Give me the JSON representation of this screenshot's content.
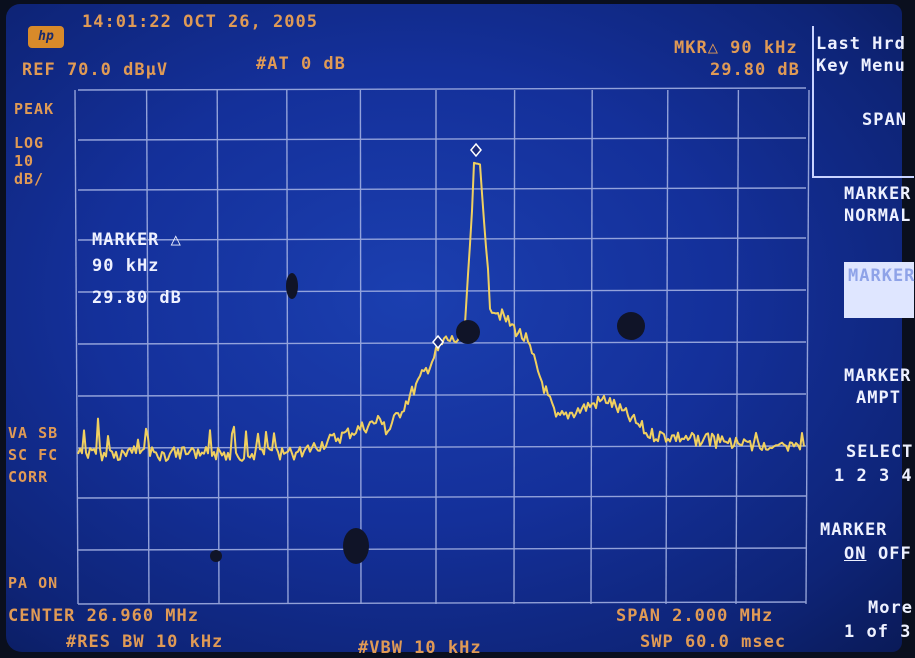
{
  "header": {
    "timestamp": "14:01:22 OCT 26, 2005",
    "ref_level": "REF 70.0 dBµV",
    "attenuation": "#AT 0 dB",
    "marker_delta_freq": "MKR△ 90 kHz",
    "marker_delta_ampl": "29.80 dB"
  },
  "left_annotations": {
    "detector": "PEAK",
    "scale": "LOG",
    "scale_value": "10",
    "scale_unit": "dB/",
    "va_sb": "VA SB",
    "sc_fc": "SC FC",
    "corr": "CORR",
    "pa_on": "PA ON"
  },
  "marker_readout": {
    "title": "MARKER △",
    "freq": "90 kHz",
    "ampl": "29.80 dB"
  },
  "bottom": {
    "center": "CENTER 26.960 MHz",
    "span": "SPAN 2.000 MHz",
    "res_bw": "#RES BW 10 kHz",
    "vbw": "#VBW 10 kHz",
    "sweep": "SWP 60.0 msec"
  },
  "softkeys": {
    "menu_line1": "Last Hrd",
    "menu_line2": "Key Menu",
    "span": "SPAN",
    "marker_normal_1": "MARKER",
    "marker_normal_2": "NORMAL",
    "marker_boxed": "MARKER",
    "marker_amptd_1": "MARKER",
    "marker_amptd_2": "AMPT",
    "select_1": "SELECT",
    "select_2": "1 2 3 4",
    "marker_onoff_1": "MARKER",
    "marker_onoff_on": "ON",
    "marker_onoff_off": "OFF",
    "more_1": "More",
    "more_2": "1 of 3"
  },
  "colors": {
    "screen_blue": "#14309a",
    "grid": "#a9b6e6",
    "trace": "#f0d060",
    "annotation_orange": "#e09a55",
    "text_white": "#eef1ff"
  }
}
